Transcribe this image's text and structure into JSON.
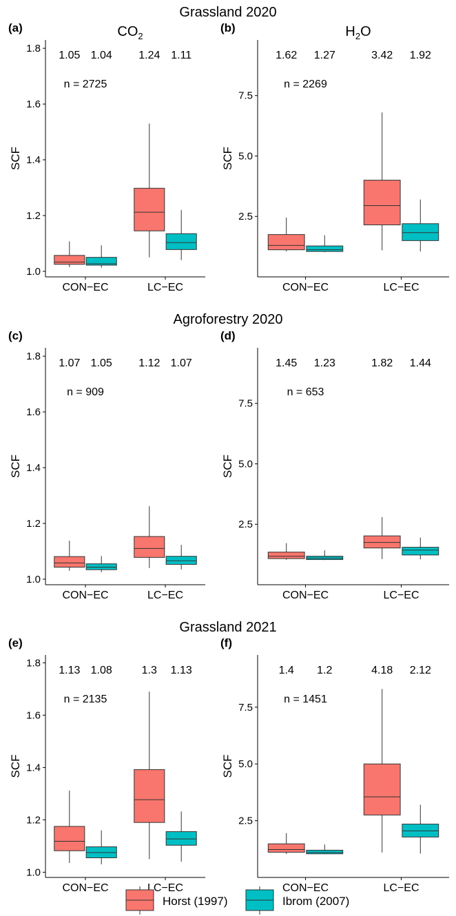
{
  "colors": {
    "horst": "#F8766D",
    "ibrom": "#00BFC4",
    "axis": "#000000",
    "whisker": "#333333"
  },
  "legend": {
    "items": [
      {
        "name": "Horst (1997)",
        "color": "#F8766D"
      },
      {
        "name": "Ibrom (2007)",
        "color": "#00BFC4"
      }
    ]
  },
  "rows": [
    {
      "title": "Grassland 2020"
    },
    {
      "title": "Agroforestry 2020"
    },
    {
      "title": "Grassland 2021"
    }
  ],
  "columns": [
    {
      "header_main": "CO",
      "header_sub": "2"
    },
    {
      "header_main": "H",
      "header_sub": "2",
      "header_tail": "O"
    }
  ],
  "chart_data": [
    {
      "type": "boxplot",
      "panel_label": "(a)",
      "ylabel": "SCF",
      "ylim": [
        0.98,
        1.83
      ],
      "yticks": [
        1.0,
        1.2,
        1.4,
        1.6,
        1.8
      ],
      "ytick_labels": [
        "1.0",
        "1.2",
        "1.4",
        "1.6",
        "1.8"
      ],
      "categories": [
        "CON−EC",
        "LC−EC"
      ],
      "n_label": "n = 2725",
      "mean_labels": [
        "1.05",
        "1.04",
        "1.24",
        "1.11"
      ],
      "series": [
        {
          "name": "Horst (1997)",
          "boxes": [
            {
              "min": 1.015,
              "q1": 1.025,
              "median": 1.033,
              "q3": 1.057,
              "max": 1.107
            },
            {
              "min": 1.05,
              "q1": 1.145,
              "median": 1.212,
              "q3": 1.298,
              "max": 1.53
            }
          ]
        },
        {
          "name": "Ibrom (2007)",
          "boxes": [
            {
              "min": 1.013,
              "q1": 1.022,
              "median": 1.027,
              "q3": 1.05,
              "max": 1.093
            },
            {
              "min": 1.04,
              "q1": 1.078,
              "median": 1.103,
              "q3": 1.135,
              "max": 1.22
            }
          ]
        }
      ]
    },
    {
      "type": "boxplot",
      "panel_label": "(b)",
      "ylabel": "SCF",
      "ylim": [
        0.0,
        9.8
      ],
      "yticks": [
        2.5,
        5.0,
        7.5
      ],
      "ytick_labels": [
        "2.5",
        "5.0",
        "7.5"
      ],
      "categories": [
        "CON−EC",
        "LC−EC"
      ],
      "n_label": "n = 2269",
      "mean_labels": [
        "1.62",
        "1.27",
        "3.42",
        "1.92"
      ],
      "series": [
        {
          "name": "Horst (1997)",
          "boxes": [
            {
              "min": 1.05,
              "q1": 1.12,
              "median": 1.3,
              "q3": 1.75,
              "max": 2.45
            },
            {
              "min": 1.1,
              "q1": 2.15,
              "median": 2.95,
              "q3": 4.0,
              "max": 6.8
            }
          ]
        },
        {
          "name": "Ibrom (2007)",
          "boxes": [
            {
              "min": 1.02,
              "q1": 1.05,
              "median": 1.12,
              "q3": 1.28,
              "max": 1.72
            },
            {
              "min": 1.05,
              "q1": 1.5,
              "median": 1.83,
              "q3": 2.2,
              "max": 3.2
            }
          ]
        }
      ]
    },
    {
      "type": "boxplot",
      "panel_label": "(c)",
      "ylabel": "SCF",
      "ylim": [
        0.98,
        1.83
      ],
      "yticks": [
        1.0,
        1.2,
        1.4,
        1.6,
        1.8
      ],
      "ytick_labels": [
        "1.0",
        "1.2",
        "1.4",
        "1.6",
        "1.8"
      ],
      "categories": [
        "CON−EC",
        "LC−EC"
      ],
      "n_label": "n = 909",
      "mean_labels": [
        "1.07",
        "1.05",
        "1.12",
        "1.07"
      ],
      "series": [
        {
          "name": "Horst (1997)",
          "boxes": [
            {
              "min": 1.03,
              "q1": 1.043,
              "median": 1.058,
              "q3": 1.081,
              "max": 1.138
            },
            {
              "min": 1.04,
              "q1": 1.078,
              "median": 1.11,
              "q3": 1.153,
              "max": 1.262
            }
          ]
        },
        {
          "name": "Ibrom (2007)",
          "boxes": [
            {
              "min": 1.025,
              "q1": 1.034,
              "median": 1.043,
              "q3": 1.055,
              "max": 1.083
            },
            {
              "min": 1.035,
              "q1": 1.053,
              "median": 1.066,
              "q3": 1.082,
              "max": 1.123
            }
          ]
        }
      ]
    },
    {
      "type": "boxplot",
      "panel_label": "(d)",
      "ylabel": "SCF",
      "ylim": [
        0.0,
        9.8
      ],
      "yticks": [
        2.5,
        5.0,
        7.5
      ],
      "ytick_labels": [
        "2.5",
        "5.0",
        "7.5"
      ],
      "categories": [
        "CON−EC",
        "LC−EC"
      ],
      "n_label": "n = 653",
      "mean_labels": [
        "1.45",
        "1.23",
        "1.82",
        "1.44"
      ],
      "series": [
        {
          "name": "Horst (1997)",
          "boxes": [
            {
              "min": 1.03,
              "q1": 1.08,
              "median": 1.18,
              "q3": 1.35,
              "max": 1.72
            },
            {
              "min": 1.06,
              "q1": 1.52,
              "median": 1.75,
              "q3": 2.02,
              "max": 2.8
            }
          ]
        },
        {
          "name": "Ibrom (2007)",
          "boxes": [
            {
              "min": 1.02,
              "q1": 1.04,
              "median": 1.1,
              "q3": 1.18,
              "max": 1.42
            },
            {
              "min": 1.05,
              "q1": 1.23,
              "median": 1.43,
              "q3": 1.55,
              "max": 1.95
            }
          ]
        }
      ]
    },
    {
      "type": "boxplot",
      "panel_label": "(e)",
      "ylabel": "SCF",
      "ylim": [
        0.98,
        1.83
      ],
      "yticks": [
        1.0,
        1.2,
        1.4,
        1.6,
        1.8
      ],
      "ytick_labels": [
        "1.0",
        "1.2",
        "1.4",
        "1.6",
        "1.8"
      ],
      "categories": [
        "CON−EC",
        "LC−EC"
      ],
      "n_label": "n = 2135",
      "mean_labels": [
        "1.13",
        "1.08",
        "1.3",
        "1.13"
      ],
      "series": [
        {
          "name": "Horst (1997)",
          "boxes": [
            {
              "min": 1.035,
              "q1": 1.082,
              "median": 1.118,
              "q3": 1.175,
              "max": 1.312
            },
            {
              "min": 1.05,
              "q1": 1.19,
              "median": 1.277,
              "q3": 1.392,
              "max": 1.69
            }
          ]
        },
        {
          "name": "Ibrom (2007)",
          "boxes": [
            {
              "min": 1.03,
              "q1": 1.055,
              "median": 1.075,
              "q3": 1.097,
              "max": 1.16
            },
            {
              "min": 1.04,
              "q1": 1.103,
              "median": 1.127,
              "q3": 1.155,
              "max": 1.232
            }
          ]
        }
      ]
    },
    {
      "type": "boxplot",
      "panel_label": "(f)",
      "ylabel": "SCF",
      "ylim": [
        0.0,
        9.8
      ],
      "yticks": [
        2.5,
        5.0,
        7.5
      ],
      "ytick_labels": [
        "2.5",
        "5.0",
        "7.5"
      ],
      "categories": [
        "CON−EC",
        "LC−EC"
      ],
      "n_label": "n = 1451",
      "mean_labels": [
        "1.4",
        "1.2",
        "4.18",
        "2.12"
      ],
      "series": [
        {
          "name": "Horst (1997)",
          "boxes": [
            {
              "min": 1.03,
              "q1": 1.11,
              "median": 1.23,
              "q3": 1.48,
              "max": 1.95
            },
            {
              "min": 1.1,
              "q1": 2.75,
              "median": 3.55,
              "q3": 5.0,
              "max": 8.3
            }
          ]
        },
        {
          "name": "Ibrom (2007)",
          "boxes": [
            {
              "min": 1.02,
              "q1": 1.04,
              "median": 1.1,
              "q3": 1.2,
              "max": 1.45
            },
            {
              "min": 1.05,
              "q1": 1.78,
              "median": 2.05,
              "q3": 2.35,
              "max": 3.2
            }
          ]
        }
      ]
    }
  ]
}
